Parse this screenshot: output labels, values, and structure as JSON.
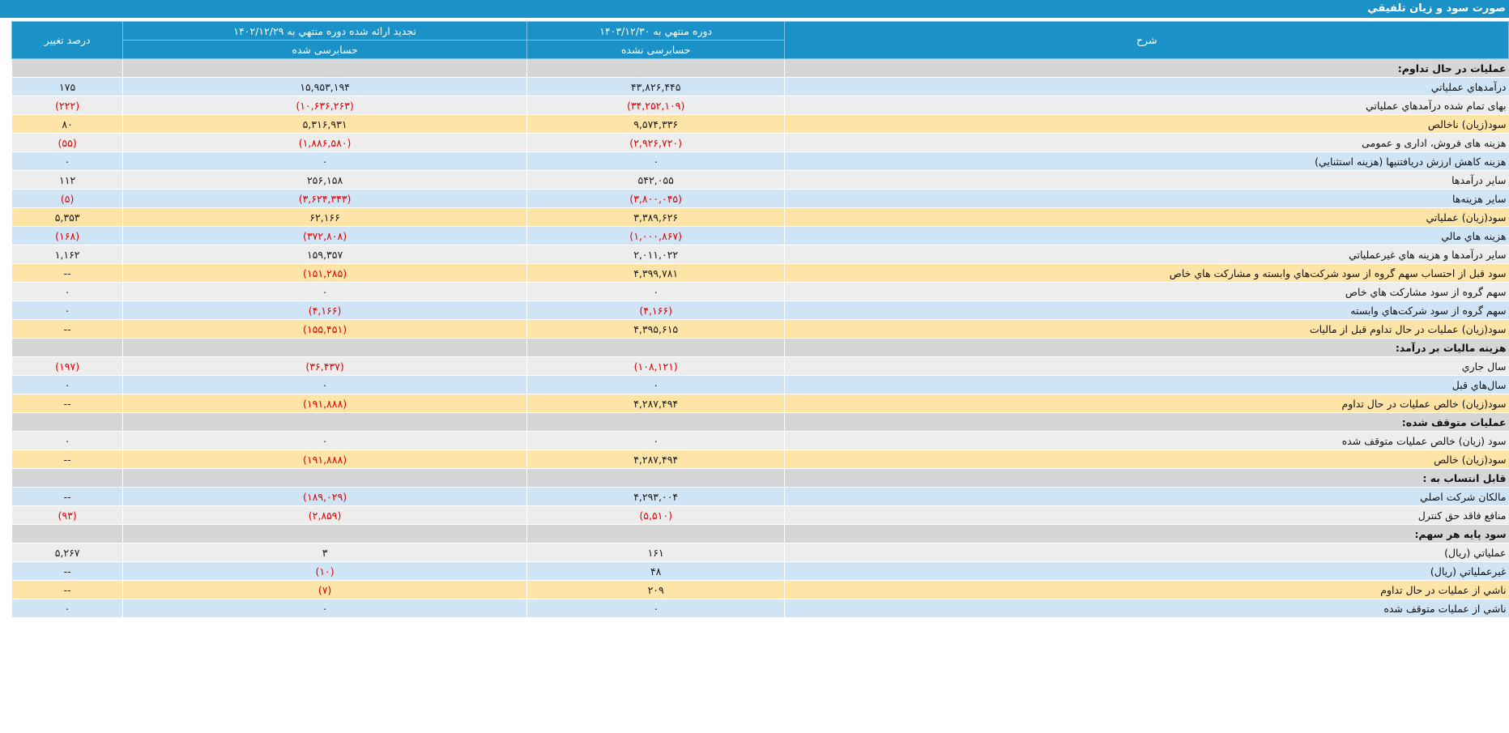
{
  "title": "صورت سود و زیان تلفیقي",
  "headers": {
    "desc": "شرح",
    "current_period": "دوره منتهي به ۱۴۰۳/۱۲/۳۰",
    "current_status": "حسابرسی نشده",
    "prev_period": "تجدید ارائه شده دوره منتهي به ۱۴۰۲/۱۲/۲۹",
    "prev_status": "حسابرسی شده",
    "pct": "درصد تغییر"
  },
  "rows": [
    {
      "type": "section",
      "desc": "عملیات در حال تداوم:",
      "cur": "",
      "prev": "",
      "pct": ""
    },
    {
      "type": "blue",
      "desc": "درآمدهاي عملياتي",
      "cur": "۴۳,۸۲۶,۴۴۵",
      "prev": "۱۵,۹۵۳,۱۹۴",
      "pct": "۱۷۵"
    },
    {
      "type": "gray",
      "desc": "بهاى تمام شده درآمدهاي عملياتي",
      "cur": "(۳۴,۲۵۲,۱۰۹)",
      "prev": "(۱۰,۶۳۶,۲۶۳)",
      "pct": "(۲۲۲)"
    },
    {
      "type": "yellow",
      "desc": "سود(زيان) ناخالص",
      "cur": "۹,۵۷۴,۳۳۶",
      "prev": "۵,۳۱۶,۹۳۱",
      "pct": "۸۰"
    },
    {
      "type": "gray",
      "desc": "هزینه های فروش، اداری و عمومی",
      "cur": "(۲,۹۲۶,۷۲۰)",
      "prev": "(۱,۸۸۶,۵۸۰)",
      "pct": "(۵۵)"
    },
    {
      "type": "blue",
      "desc": "هزینه کاهش ارزش دريافتنيها (هزينه استثنايي)",
      "cur": "۰",
      "prev": "۰",
      "pct": "۰"
    },
    {
      "type": "gray",
      "desc": "ساير درآمدها",
      "cur": "۵۴۲,۰۵۵",
      "prev": "۲۵۶,۱۵۸",
      "pct": "۱۱۲"
    },
    {
      "type": "blue",
      "desc": "سایر هزینه‌ها",
      "cur": "(۳,۸۰۰,۰۴۵)",
      "prev": "(۳,۶۲۴,۳۴۳)",
      "pct": "(۵)"
    },
    {
      "type": "yellow",
      "desc": "سود(زيان) عملياتي",
      "cur": "۳,۳۸۹,۶۲۶",
      "prev": "۶۲,۱۶۶",
      "pct": "۵,۳۵۳"
    },
    {
      "type": "blue",
      "desc": "هزينه هاي مالي",
      "cur": "(۱,۰۰۰,۸۶۷)",
      "prev": "(۳۷۲,۸۰۸)",
      "pct": "(۱۶۸)"
    },
    {
      "type": "gray",
      "desc": "ساير درآمدها و هزينه هاي غيرعملياتي",
      "cur": "۲,۰۱۱,۰۲۲",
      "prev": "۱۵۹,۳۵۷",
      "pct": "۱,۱۶۲"
    },
    {
      "type": "yellow",
      "desc": "سود قبل از احتساب سهم گروه از سود شرکت‌هاي وابسته و مشارکت هاي خاص",
      "cur": "۴,۳۹۹,۷۸۱",
      "prev": "(۱۵۱,۲۸۵)",
      "pct": "--"
    },
    {
      "type": "gray",
      "desc": "سهم گروه از سود مشارکت هاي خاص",
      "cur": "۰",
      "prev": "۰",
      "pct": "۰"
    },
    {
      "type": "blue",
      "desc": "سهم گروه از سود شرکت‌هاي وابسته",
      "cur": "(۴,۱۶۶)",
      "prev": "(۴,۱۶۶)",
      "pct": "۰"
    },
    {
      "type": "yellow",
      "desc": "سود(زيان) عمليات در حال تداوم قبل از ماليات",
      "cur": "۴,۳۹۵,۶۱۵",
      "prev": "(۱۵۵,۴۵۱)",
      "pct": "--"
    },
    {
      "type": "section",
      "desc": "هزینه مالیات بر درآمد:",
      "cur": "",
      "prev": "",
      "pct": ""
    },
    {
      "type": "gray",
      "desc": "سال جاري",
      "cur": "(۱۰۸,۱۲۱)",
      "prev": "(۳۶,۴۳۷)",
      "pct": "(۱۹۷)"
    },
    {
      "type": "blue",
      "desc": "سال‌هاي قبل",
      "cur": "۰",
      "prev": "۰",
      "pct": "۰"
    },
    {
      "type": "yellow",
      "desc": "سود(زيان) خالص عمليات در حال تداوم",
      "cur": "۴,۲۸۷,۴۹۴",
      "prev": "(۱۹۱,۸۸۸)",
      "pct": "--"
    },
    {
      "type": "section",
      "desc": "عملیات متوقف شده:",
      "cur": "",
      "prev": "",
      "pct": ""
    },
    {
      "type": "gray",
      "desc": "سود (زيان) خالص عمليات متوقف شده",
      "cur": "۰",
      "prev": "۰",
      "pct": "۰"
    },
    {
      "type": "yellow",
      "desc": "سود(زيان) خالص",
      "cur": "۴,۲۸۷,۴۹۴",
      "prev": "(۱۹۱,۸۸۸)",
      "pct": "--"
    },
    {
      "type": "section",
      "desc": "قابل انتساب به :",
      "cur": "",
      "prev": "",
      "pct": ""
    },
    {
      "type": "blue",
      "desc": "مالکان شرکت اصلي",
      "cur": "۴,۲۹۳,۰۰۴",
      "prev": "(۱۸۹,۰۲۹)",
      "pct": "--"
    },
    {
      "type": "gray",
      "desc": "منافع فاقد حق کنترل",
      "cur": "(۵,۵۱۰)",
      "prev": "(۲,۸۵۹)",
      "pct": "(۹۳)"
    },
    {
      "type": "section",
      "desc": "سود پایه هر سهم:",
      "cur": "",
      "prev": "",
      "pct": ""
    },
    {
      "type": "gray",
      "desc": "عملياتي (ريال)",
      "cur": "۱۶۱",
      "prev": "۳",
      "pct": "۵,۲۶۷"
    },
    {
      "type": "blue",
      "desc": "غيرعملياتي (ريال)",
      "cur": "۴۸",
      "prev": "(۱۰)",
      "pct": "--"
    },
    {
      "type": "yellow",
      "desc": "ناشي از عمليات در حال تداوم",
      "cur": "۲۰۹",
      "prev": "(۷)",
      "pct": "--"
    },
    {
      "type": "blue",
      "desc": "ناشي از عمليات متوقف شده",
      "cur": "۰",
      "prev": "۰",
      "pct": "۰"
    }
  ],
  "colors": {
    "header": "#1a92c8",
    "section": "#d6d6d6",
    "blue_row": "#cfe5f6",
    "gray_row": "#ededed",
    "yellow_row": "#ffe4a8",
    "negative": "#e00000"
  }
}
